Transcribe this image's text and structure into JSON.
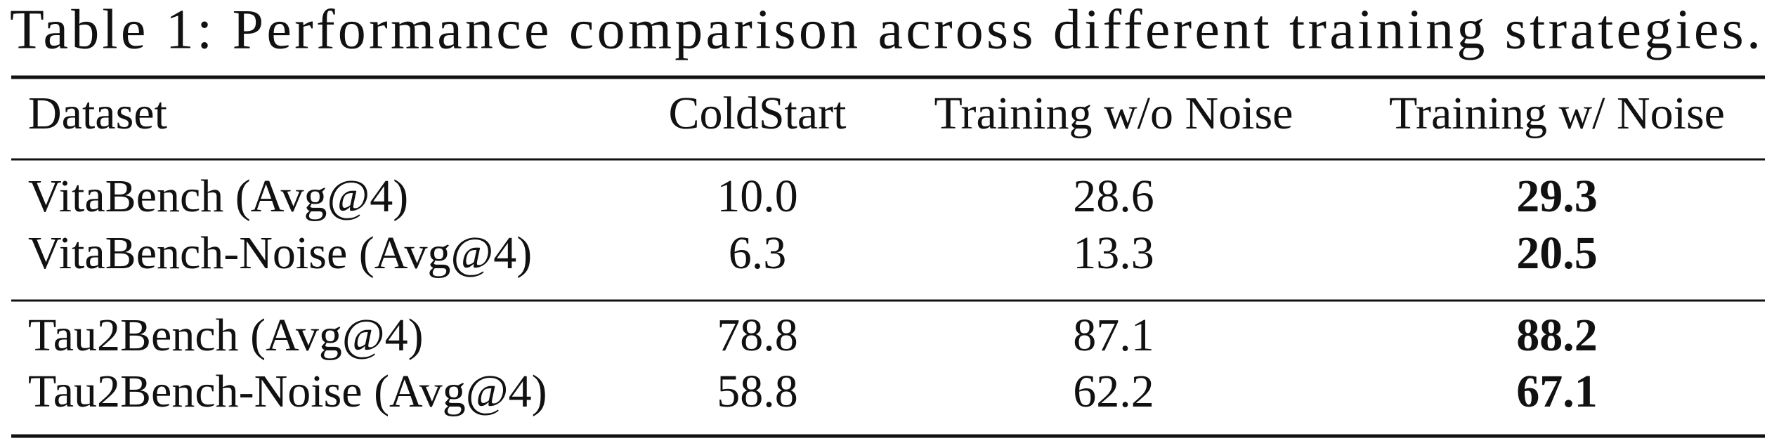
{
  "title": "Table 1: Performance comparison across different training strategies.",
  "table": {
    "header": [
      "Dataset",
      "ColdStart",
      "Training w/o Noise",
      "Training w/ Noise"
    ],
    "groups": [
      [
        [
          "VitaBench (Avg@4)",
          "10.0",
          "28.6",
          "29.3"
        ],
        [
          "VitaBench-Noise (Avg@4)",
          "6.3",
          "13.3",
          "20.5"
        ]
      ],
      [
        [
          "Tau2Bench (Avg@4)",
          "78.8",
          "87.1",
          "88.2"
        ],
        [
          "Tau2Bench-Noise (Avg@4)",
          "58.8",
          "62.2",
          "67.1"
        ]
      ]
    ]
  }
}
